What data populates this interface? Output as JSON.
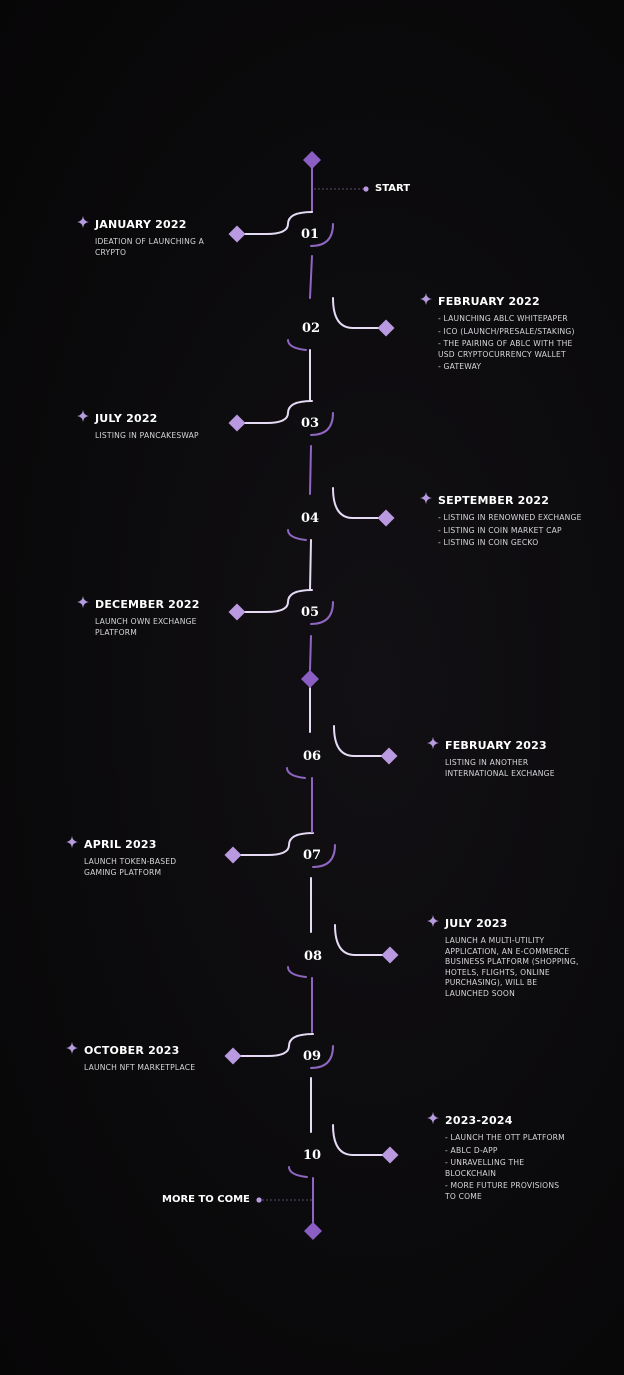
{
  "colors": {
    "line": "#8f67c2",
    "diamond_light": "#b99ae0",
    "diamond_dark": "#8a5ec2",
    "curve_light": "#e6dbf5",
    "star": "#b79bdf"
  },
  "start_label": "START",
  "end_label": "MORE TO COME",
  "milestones": [
    {
      "number": "01",
      "side": "left",
      "date": "JANUARY 2022",
      "lines": [
        "IDEATION OF LAUNCHING A",
        "CRYPTO"
      ]
    },
    {
      "number": "02",
      "side": "right",
      "date": "FEBRUARY 2022",
      "lines": [
        "- LAUNCHING ABLC WHITEPAPER",
        "- ICO (LAUNCH/PRESALE/STAKING)",
        "- THE PAIRING OF ABLC WITH THE",
        "  USD CRYPTOCURRENCY WALLET",
        "- GATEWAY"
      ]
    },
    {
      "number": "03",
      "side": "left",
      "date": "JULY 2022",
      "lines": [
        "LISTING IN PANCAKESWAP"
      ]
    },
    {
      "number": "04",
      "side": "right",
      "date": "SEPTEMBER 2022",
      "lines": [
        "- LISTING IN RENOWNED EXCHANGE",
        "- LISTING IN COIN MARKET CAP",
        "- LISTING IN COIN GECKO"
      ]
    },
    {
      "number": "05",
      "side": "left",
      "date": "DECEMBER 2022",
      "lines": [
        "LAUNCH OWN EXCHANGE",
        "PLATFORM"
      ]
    },
    {
      "number": "06",
      "side": "right",
      "date": "FEBRUARY 2023",
      "lines": [
        "LISTING IN ANOTHER",
        "INTERNATIONAL EXCHANGE"
      ]
    },
    {
      "number": "07",
      "side": "left",
      "date": "APRIL 2023",
      "lines": [
        "LAUNCH TOKEN-BASED",
        "GAMING PLATFORM"
      ]
    },
    {
      "number": "08",
      "side": "right",
      "date": "JULY 2023",
      "lines": [
        "LAUNCH A MULTI-UTILITY",
        "APPLICATION, AN E-COMMERCE",
        "BUSINESS PLATFORM (SHOPPING,",
        "HOTELS, FLIGHTS, ONLINE",
        "PURCHASING), WILL BE",
        "LAUNCHED SOON"
      ]
    },
    {
      "number": "09",
      "side": "left",
      "date": "OCTOBER 2023",
      "lines": [
        "LAUNCH NFT MARKETPLACE"
      ]
    },
    {
      "number": "10",
      "side": "right",
      "date": "2023-2024",
      "lines": [
        "- LAUNCH THE OTT PLATFORM",
        "- ABLC D-APP",
        "- UNRAVELLING THE",
        "  BLOCKCHAIN",
        "- MORE FUTURE PROVISIONS",
        "  TO COME"
      ]
    }
  ]
}
